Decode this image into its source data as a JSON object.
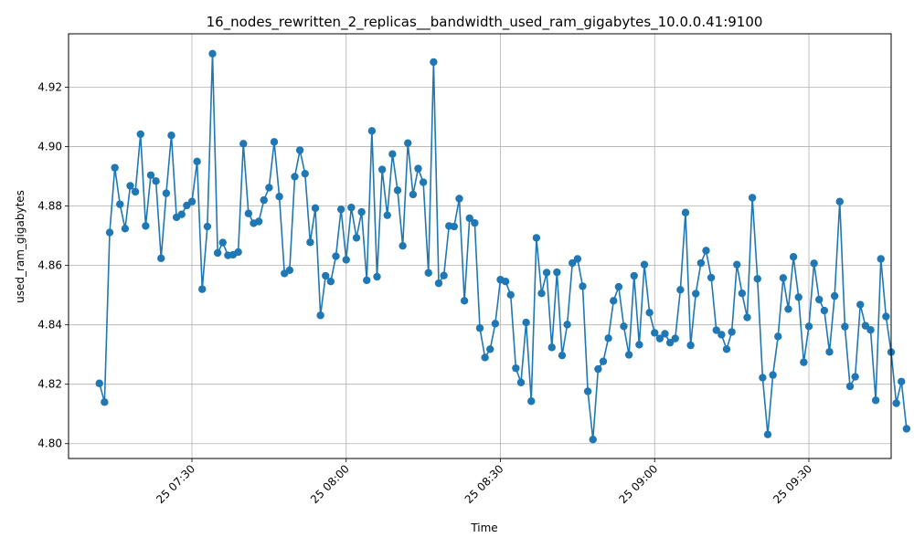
{
  "chart_data": {
    "type": "line",
    "title": "16_nodes_rewritten_2_replicas__bandwidth_used_ram_gigabytes_10.0.0.41:9100",
    "xlabel": "Time",
    "ylabel": "used_ram_gigabytes",
    "x_range": [
      "2024-01-25T07:06",
      "2024-01-25T09:46"
    ],
    "ylim": [
      4.795,
      4.938
    ],
    "x_ticks": [
      {
        "t": "2024-01-25T07:30",
        "label": "25 07:30"
      },
      {
        "t": "2024-01-25T08:00",
        "label": "25 08:00"
      },
      {
        "t": "2024-01-25T08:30",
        "label": "25 08:30"
      },
      {
        "t": "2024-01-25T09:00",
        "label": "25 09:00"
      },
      {
        "t": "2024-01-25T09:30",
        "label": "25 09:30"
      }
    ],
    "y_ticks": [
      4.8,
      4.82,
      4.84,
      4.86,
      4.88,
      4.9,
      4.92
    ],
    "y_tick_labels": [
      "4.80",
      "4.82",
      "4.84",
      "4.86",
      "4.88",
      "4.90",
      "4.92"
    ],
    "grid": true,
    "series": [
      {
        "color": "#1f77b4",
        "marker": "circle",
        "start": "2024-01-25T07:12",
        "interval_minutes": 1,
        "values": [
          4.8203,
          4.814,
          4.8711,
          4.8929,
          4.8806,
          4.8724,
          4.8868,
          4.8848,
          4.9042,
          4.8733,
          4.8904,
          4.8884,
          4.8624,
          4.8843,
          4.9038,
          4.8762,
          4.8772,
          4.8802,
          4.8815,
          4.895,
          4.852,
          4.8731,
          4.9313,
          4.8642,
          4.8677,
          4.8634,
          4.8636,
          4.8645,
          4.901,
          4.8775,
          4.8742,
          4.8748,
          4.882,
          4.8862,
          4.9016,
          4.8832,
          4.8573,
          4.8584,
          4.8899,
          4.8988,
          4.8909,
          4.8678,
          4.8793,
          4.8432,
          4.8565,
          4.8546,
          4.8631,
          4.8789,
          4.8619,
          4.8795,
          4.8693,
          4.878,
          4.855,
          4.9053,
          4.8562,
          4.8923,
          4.8769,
          4.8975,
          4.8853,
          4.8666,
          4.9012,
          4.8839,
          4.8926,
          4.888,
          4.8575,
          4.9285,
          4.854,
          4.8566,
          4.8733,
          4.8731,
          4.8825,
          4.8481,
          4.8759,
          4.8743,
          4.8389,
          4.829,
          4.8318,
          4.8404,
          4.8552,
          4.8546,
          4.8501,
          4.8254,
          4.8206,
          4.8408,
          4.8143,
          4.8693,
          4.8506,
          4.8576,
          4.8324,
          4.8577,
          4.8297,
          4.8401,
          4.8608,
          4.8622,
          4.853,
          4.8176,
          4.8014,
          4.8251,
          4.8277,
          4.8355,
          4.8481,
          4.8528,
          4.8395,
          4.8299,
          4.8565,
          4.8333,
          4.8603,
          4.8441,
          4.8373,
          4.8354,
          4.837,
          4.834,
          4.8354,
          4.8518,
          4.8778,
          4.8331,
          4.8505,
          4.8608,
          4.865,
          4.8559,
          4.8382,
          4.8367,
          4.8318,
          4.8376,
          4.8603,
          4.8506,
          4.8425,
          4.8828,
          4.8555,
          4.8222,
          4.8031,
          4.8231,
          4.8361,
          4.8558,
          4.8453,
          4.8629,
          4.8493,
          4.8274,
          4.8395,
          4.8607,
          4.8485,
          4.8448,
          4.8309,
          4.8497,
          4.8815,
          4.8394,
          4.8193,
          4.8225,
          4.8468,
          4.8397,
          4.8383,
          4.8146,
          4.8622,
          4.8428,
          4.8308,
          4.8136,
          4.8209,
          4.805
        ]
      }
    ]
  }
}
